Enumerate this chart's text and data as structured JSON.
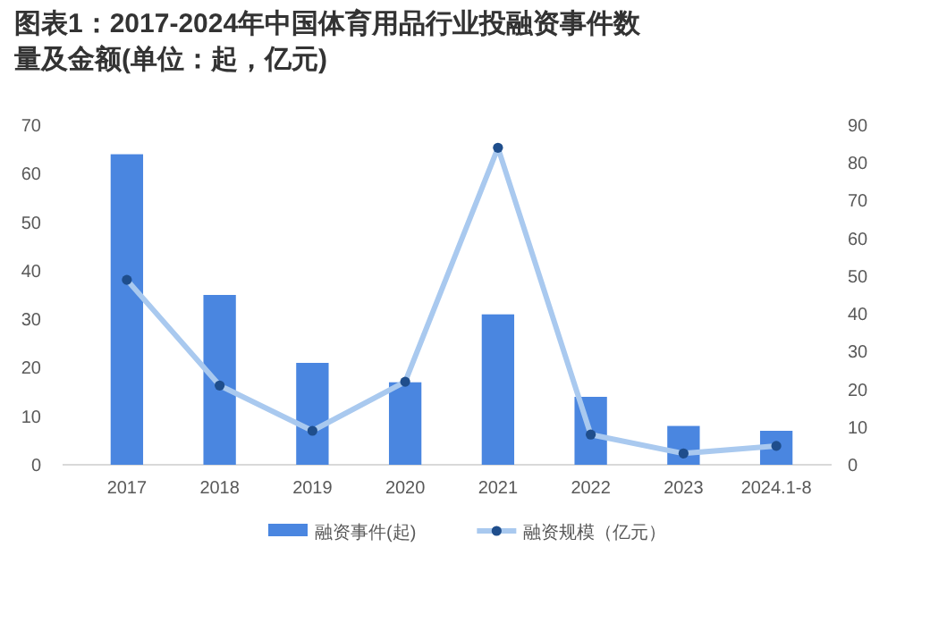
{
  "chart_data": {
    "type": "bar",
    "title": "图表1：2017-2024年中国体育用品行业投融资事件数量及金额(单位：起，亿元)",
    "categories": [
      "2017",
      "2018",
      "2019",
      "2020",
      "2021",
      "2022",
      "2023",
      "2024.1-8"
    ],
    "series": [
      {
        "name": "融资事件(起)",
        "color": "#4a86e0",
        "values": [
          64,
          35,
          21,
          17,
          31,
          14,
          8,
          7
        ]
      },
      {
        "name": "融资规模（亿元）",
        "type": "line",
        "axis": "y2",
        "color": "#a9c9ef",
        "marker": "circle",
        "line_style": "solid",
        "values": [
          49,
          21,
          9,
          22,
          84,
          8,
          3,
          5
        ]
      }
    ],
    "ylim": [
      0,
      70
    ],
    "yticks": [
      0,
      10,
      20,
      30,
      40,
      50,
      60,
      70
    ],
    "y2lim": [
      0,
      90
    ],
    "y2ticks": [
      0,
      10,
      20,
      30,
      40,
      50,
      60,
      70,
      80,
      90
    ],
    "grid": false,
    "legend": "bottom"
  }
}
